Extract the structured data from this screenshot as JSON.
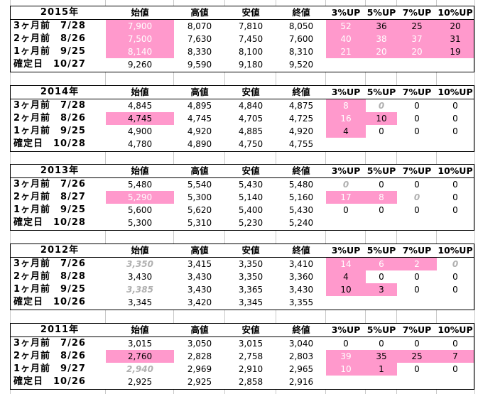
{
  "headers": [
    "始値",
    "高値",
    "安値",
    "終値",
    "3%UP",
    "5%UP",
    "7%UP",
    "10%UP"
  ],
  "blocks": [
    {
      "year": "2015年",
      "rows": [
        {
          "label": "3ヶ月前　7/28",
          "cells": [
            "7,900",
            "8,070",
            "7,810",
            "8,050",
            "52",
            "36",
            "25",
            "20"
          ]
        },
        {
          "label": "2ヶ月前　8/26",
          "cells": [
            "7,500",
            "7,630",
            "7,450",
            "7,600",
            "40",
            "38",
            "37",
            "31"
          ]
        },
        {
          "label": "1ヶ月前　9/25",
          "cells": [
            "8,140",
            "8,330",
            "8,100",
            "8,310",
            "21",
            "20",
            "20",
            "19"
          ]
        },
        {
          "label": "確定日　10/27",
          "cells": [
            "9,260",
            "9,590",
            "9,180",
            "9,520",
            "",
            "",
            "",
            ""
          ]
        }
      ]
    },
    {
      "year": "2014年",
      "rows": [
        {
          "label": "3ヶ月前　7/28",
          "cells": [
            "4,845",
            "4,895",
            "4,840",
            "4,875",
            "8",
            "0",
            "0",
            "0"
          ]
        },
        {
          "label": "2ヶ月前　8/26",
          "cells": [
            "4,745",
            "4,745",
            "4,705",
            "4,725",
            "16",
            "10",
            "0",
            "0"
          ]
        },
        {
          "label": "1ヶ月前　9/25",
          "cells": [
            "4,900",
            "4,920",
            "4,885",
            "4,920",
            "4",
            "0",
            "0",
            "0"
          ]
        },
        {
          "label": "確定日　10/28",
          "cells": [
            "4,780",
            "4,890",
            "4,750",
            "4,755",
            "",
            "",
            "",
            ""
          ]
        }
      ]
    },
    {
      "year": "2013年",
      "rows": [
        {
          "label": "3ヶ月前　7/26",
          "cells": [
            "5,480",
            "5,540",
            "5,430",
            "5,480",
            "0",
            "0",
            "0",
            "0"
          ]
        },
        {
          "label": "2ヶ月前　8/27",
          "cells": [
            "5,290",
            "5,300",
            "5,140",
            "5,160",
            "17",
            "8",
            "0",
            "0"
          ]
        },
        {
          "label": "1ヶ月前　9/25",
          "cells": [
            "5,600",
            "5,620",
            "5,400",
            "5,430",
            "0",
            "0",
            "0",
            "0"
          ]
        },
        {
          "label": "確定日　10/28",
          "cells": [
            "5,300",
            "5,310",
            "5,230",
            "5,240",
            "",
            "",
            "",
            ""
          ]
        }
      ]
    },
    {
      "year": "2012年",
      "rows": [
        {
          "label": "3ヶ月前　7/26",
          "cells": [
            "3,350",
            "3,415",
            "3,350",
            "3,410",
            "14",
            "6",
            "2",
            "0"
          ]
        },
        {
          "label": "2ヶ月前　8/28",
          "cells": [
            "3,430",
            "3,430",
            "3,350",
            "3,360",
            "4",
            "0",
            "0",
            "0"
          ]
        },
        {
          "label": "1ヶ月前　9/25",
          "cells": [
            "3,385",
            "3,430",
            "3,365",
            "3,430",
            "10",
            "3",
            "0",
            "0"
          ]
        },
        {
          "label": "確定日　10/26",
          "cells": [
            "3,345",
            "3,420",
            "3,345",
            "3,355",
            "",
            "",
            "",
            ""
          ]
        }
      ]
    },
    {
      "year": "2011年",
      "rows": [
        {
          "label": "3ヶ月前　7/26",
          "cells": [
            "3,015",
            "3,050",
            "3,015",
            "3,040",
            "0",
            "0",
            "0",
            "0"
          ]
        },
        {
          "label": "2ヶ月前　8/26",
          "cells": [
            "2,760",
            "2,828",
            "2,758",
            "2,803",
            "39",
            "35",
            "25",
            "7"
          ]
        },
        {
          "label": "1ヶ月前　9/27",
          "cells": [
            "2,940",
            "2,969",
            "2,910",
            "2,965",
            "10",
            "1",
            "0",
            "0"
          ]
        },
        {
          "label": "確定日　10/26",
          "cells": [
            "2,925",
            "2,925",
            "2,858",
            "2,916",
            "",
            "",
            "",
            ""
          ]
        }
      ]
    }
  ],
  "colors": {
    "highlight": "#ff99cc",
    "gridline": "#c8c8c8",
    "border": "#000000",
    "muted_text": "#b0b0b0",
    "ghost_text": "#ffffff"
  }
}
